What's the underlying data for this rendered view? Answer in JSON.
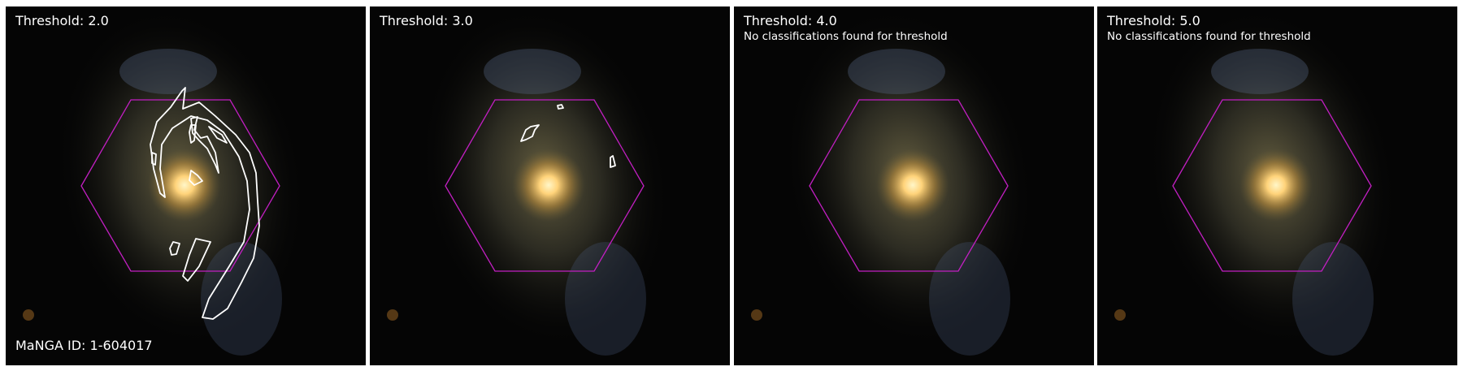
{
  "panels": [
    {
      "title": "Threshold: 2.0",
      "note": "",
      "contours": "present"
    },
    {
      "title": "Threshold: 3.0",
      "note": "",
      "contours": "present"
    },
    {
      "title": "Threshold: 4.0",
      "note": "No classifications found for threshold",
      "contours": "none"
    },
    {
      "title": "Threshold: 5.0",
      "note": "No classifications found for threshold",
      "contours": "none"
    }
  ],
  "galaxy_label": "MaNGA ID: 1-604017",
  "colors": {
    "background": "#050505",
    "hexagon": "#c21fc2",
    "contour": "#ffffff",
    "galaxy_core": "#ffe9a8",
    "galaxy_disk": "#8a8055"
  }
}
